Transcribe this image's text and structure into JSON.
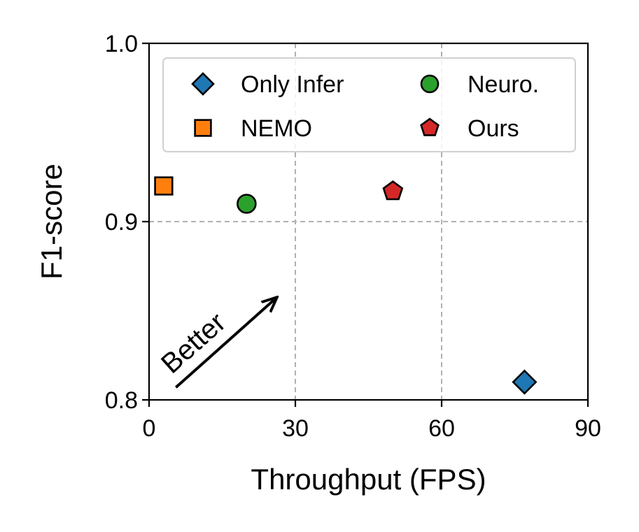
{
  "chart_data": {
    "type": "scatter",
    "xlabel": "Throughput (FPS)",
    "ylabel": "F1-score",
    "xlim": [
      0,
      90
    ],
    "ylim": [
      0.8,
      1.0
    ],
    "xticks": [
      0,
      30,
      60,
      90
    ],
    "yticks": [
      0.8,
      0.9,
      1.0
    ],
    "xtick_labels": [
      "0",
      "30",
      "60",
      "90"
    ],
    "ytick_labels": [
      "0.8",
      "0.9",
      "1.0"
    ],
    "grid": true,
    "legend_position": "top",
    "series": [
      {
        "name": "Only Infer",
        "marker": "diamond",
        "color": "#1f77b4",
        "x": [
          77
        ],
        "y": [
          0.81
        ]
      },
      {
        "name": "NEMO",
        "marker": "square",
        "color": "#ff7f0e",
        "x": [
          3
        ],
        "y": [
          0.92
        ]
      },
      {
        "name": "Neuro.",
        "marker": "circle",
        "color": "#2ca02c",
        "x": [
          20
        ],
        "y": [
          0.91
        ]
      },
      {
        "name": "Ours",
        "marker": "pentagon",
        "color": "#d62728",
        "x": [
          50
        ],
        "y": [
          0.917
        ]
      }
    ],
    "annotation": {
      "text": "Better",
      "from": [
        5.5,
        0.807
      ],
      "to": [
        26,
        0.857
      ]
    }
  }
}
